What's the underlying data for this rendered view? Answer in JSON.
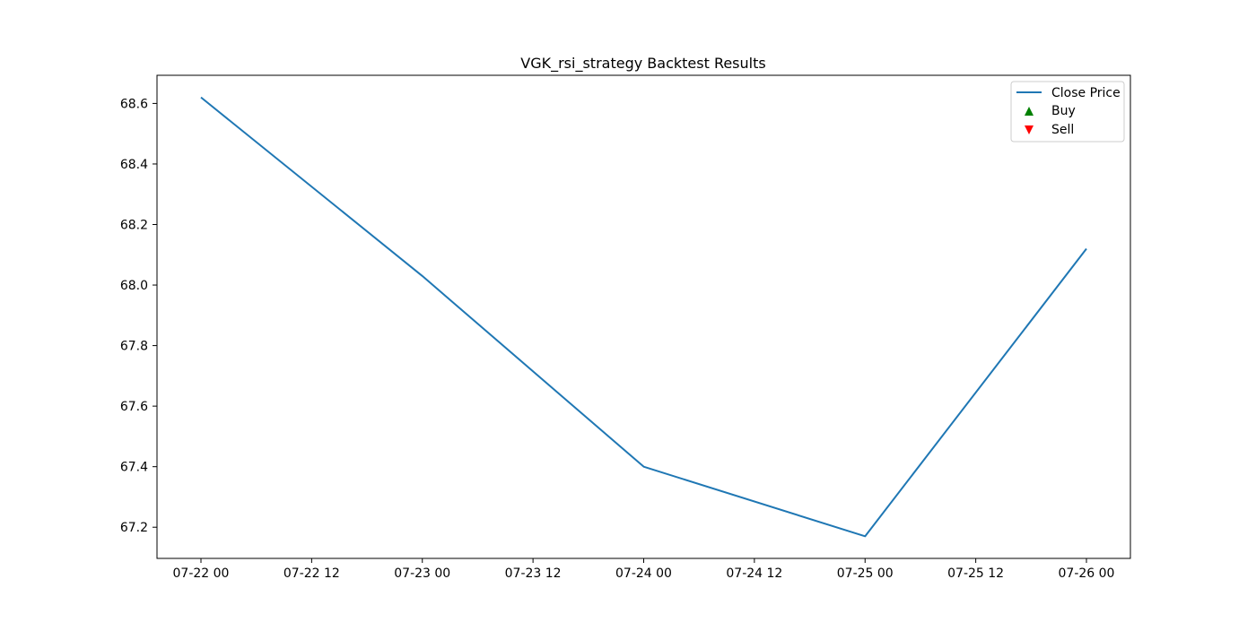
{
  "chart_data": {
    "type": "line",
    "title": "VGK_rsi_strategy Backtest Results",
    "xlabel": "",
    "ylabel": "",
    "x": [
      "07-22 00",
      "07-23 00",
      "07-24 00",
      "07-25 00",
      "07-26 00"
    ],
    "series": [
      {
        "name": "Close Price",
        "color": "#1f77b4",
        "values": [
          68.62,
          68.03,
          67.4,
          67.17,
          68.12
        ]
      }
    ],
    "buy_signals": [],
    "sell_signals": [],
    "x_ticks": [
      "07-22 00",
      "07-22 12",
      "07-23 00",
      "07-23 12",
      "07-24 00",
      "07-24 12",
      "07-25 00",
      "07-25 12",
      "07-26 00"
    ],
    "y_ticks": [
      "67.2",
      "67.4",
      "67.6",
      "67.8",
      "68.0",
      "68.2",
      "68.4",
      "68.6"
    ],
    "ylim": [
      67.097,
      68.693
    ],
    "grid": false,
    "legend": {
      "placement": "upper right",
      "entries": [
        {
          "label": "Close Price",
          "marker": "line",
          "color": "#1f77b4"
        },
        {
          "label": "Buy",
          "marker": "triangle-up",
          "color": "#008000"
        },
        {
          "label": "Sell",
          "marker": "triangle-down",
          "color": "#ff0000"
        }
      ]
    }
  }
}
